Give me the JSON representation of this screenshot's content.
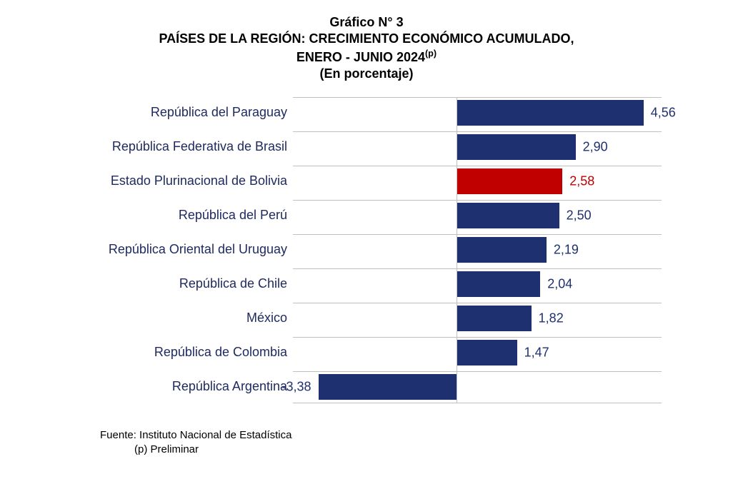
{
  "title": {
    "line1": "Gráfico N° 3",
    "line2": "PAÍSES DE LA REGIÓN: CRECIMIENTO ECONÓMICO ACUMULADO,",
    "line3_prefix": "ENERO - JUNIO 2024",
    "line3_sup": "(p)",
    "line4": "(En porcentaje)",
    "fontsize": 18,
    "color": "#000000",
    "weight": "bold"
  },
  "chart": {
    "type": "horizontal-bar",
    "xlim": [
      -4.0,
      5.0
    ],
    "zero_at": 0,
    "categories": [
      "República del Paraguay",
      "República Federativa de Brasil",
      "Estado Plurinacional de Bolivia",
      "República del Perú",
      "República Oriental del Uruguay",
      "República de Chile",
      "México",
      "República de Colombia",
      "República Argentina"
    ],
    "values": [
      4.56,
      2.9,
      2.58,
      2.5,
      2.19,
      2.04,
      1.82,
      1.47,
      -3.38
    ],
    "value_labels": [
      "4,56",
      "2,90",
      "2,58",
      "2,50",
      "2,19",
      "2,04",
      "1,82",
      "1,47",
      "-3,38"
    ],
    "bar_colors": [
      "#1f3070",
      "#1f3070",
      "#c00000",
      "#1f3070",
      "#1f3070",
      "#1f3070",
      "#1f3070",
      "#1f3070",
      "#1f3070"
    ],
    "value_label_colors": [
      "#1f3070",
      "#1f3070",
      "#c00000",
      "#1f3070",
      "#1f3070",
      "#1f3070",
      "#1f3070",
      "#1f3070",
      "#1f3070"
    ],
    "category_label_color": "#1f2a60",
    "category_fontsize": 18,
    "value_fontsize": 18,
    "gridline_color": "#bfbfbf",
    "background_color": "#ffffff",
    "bar_height_ratio": 0.82
  },
  "footer": {
    "source": "Fuente: Instituto Nacional de Estadística",
    "note": "(p) Preliminar",
    "fontsize": 15,
    "color": "#000000"
  }
}
